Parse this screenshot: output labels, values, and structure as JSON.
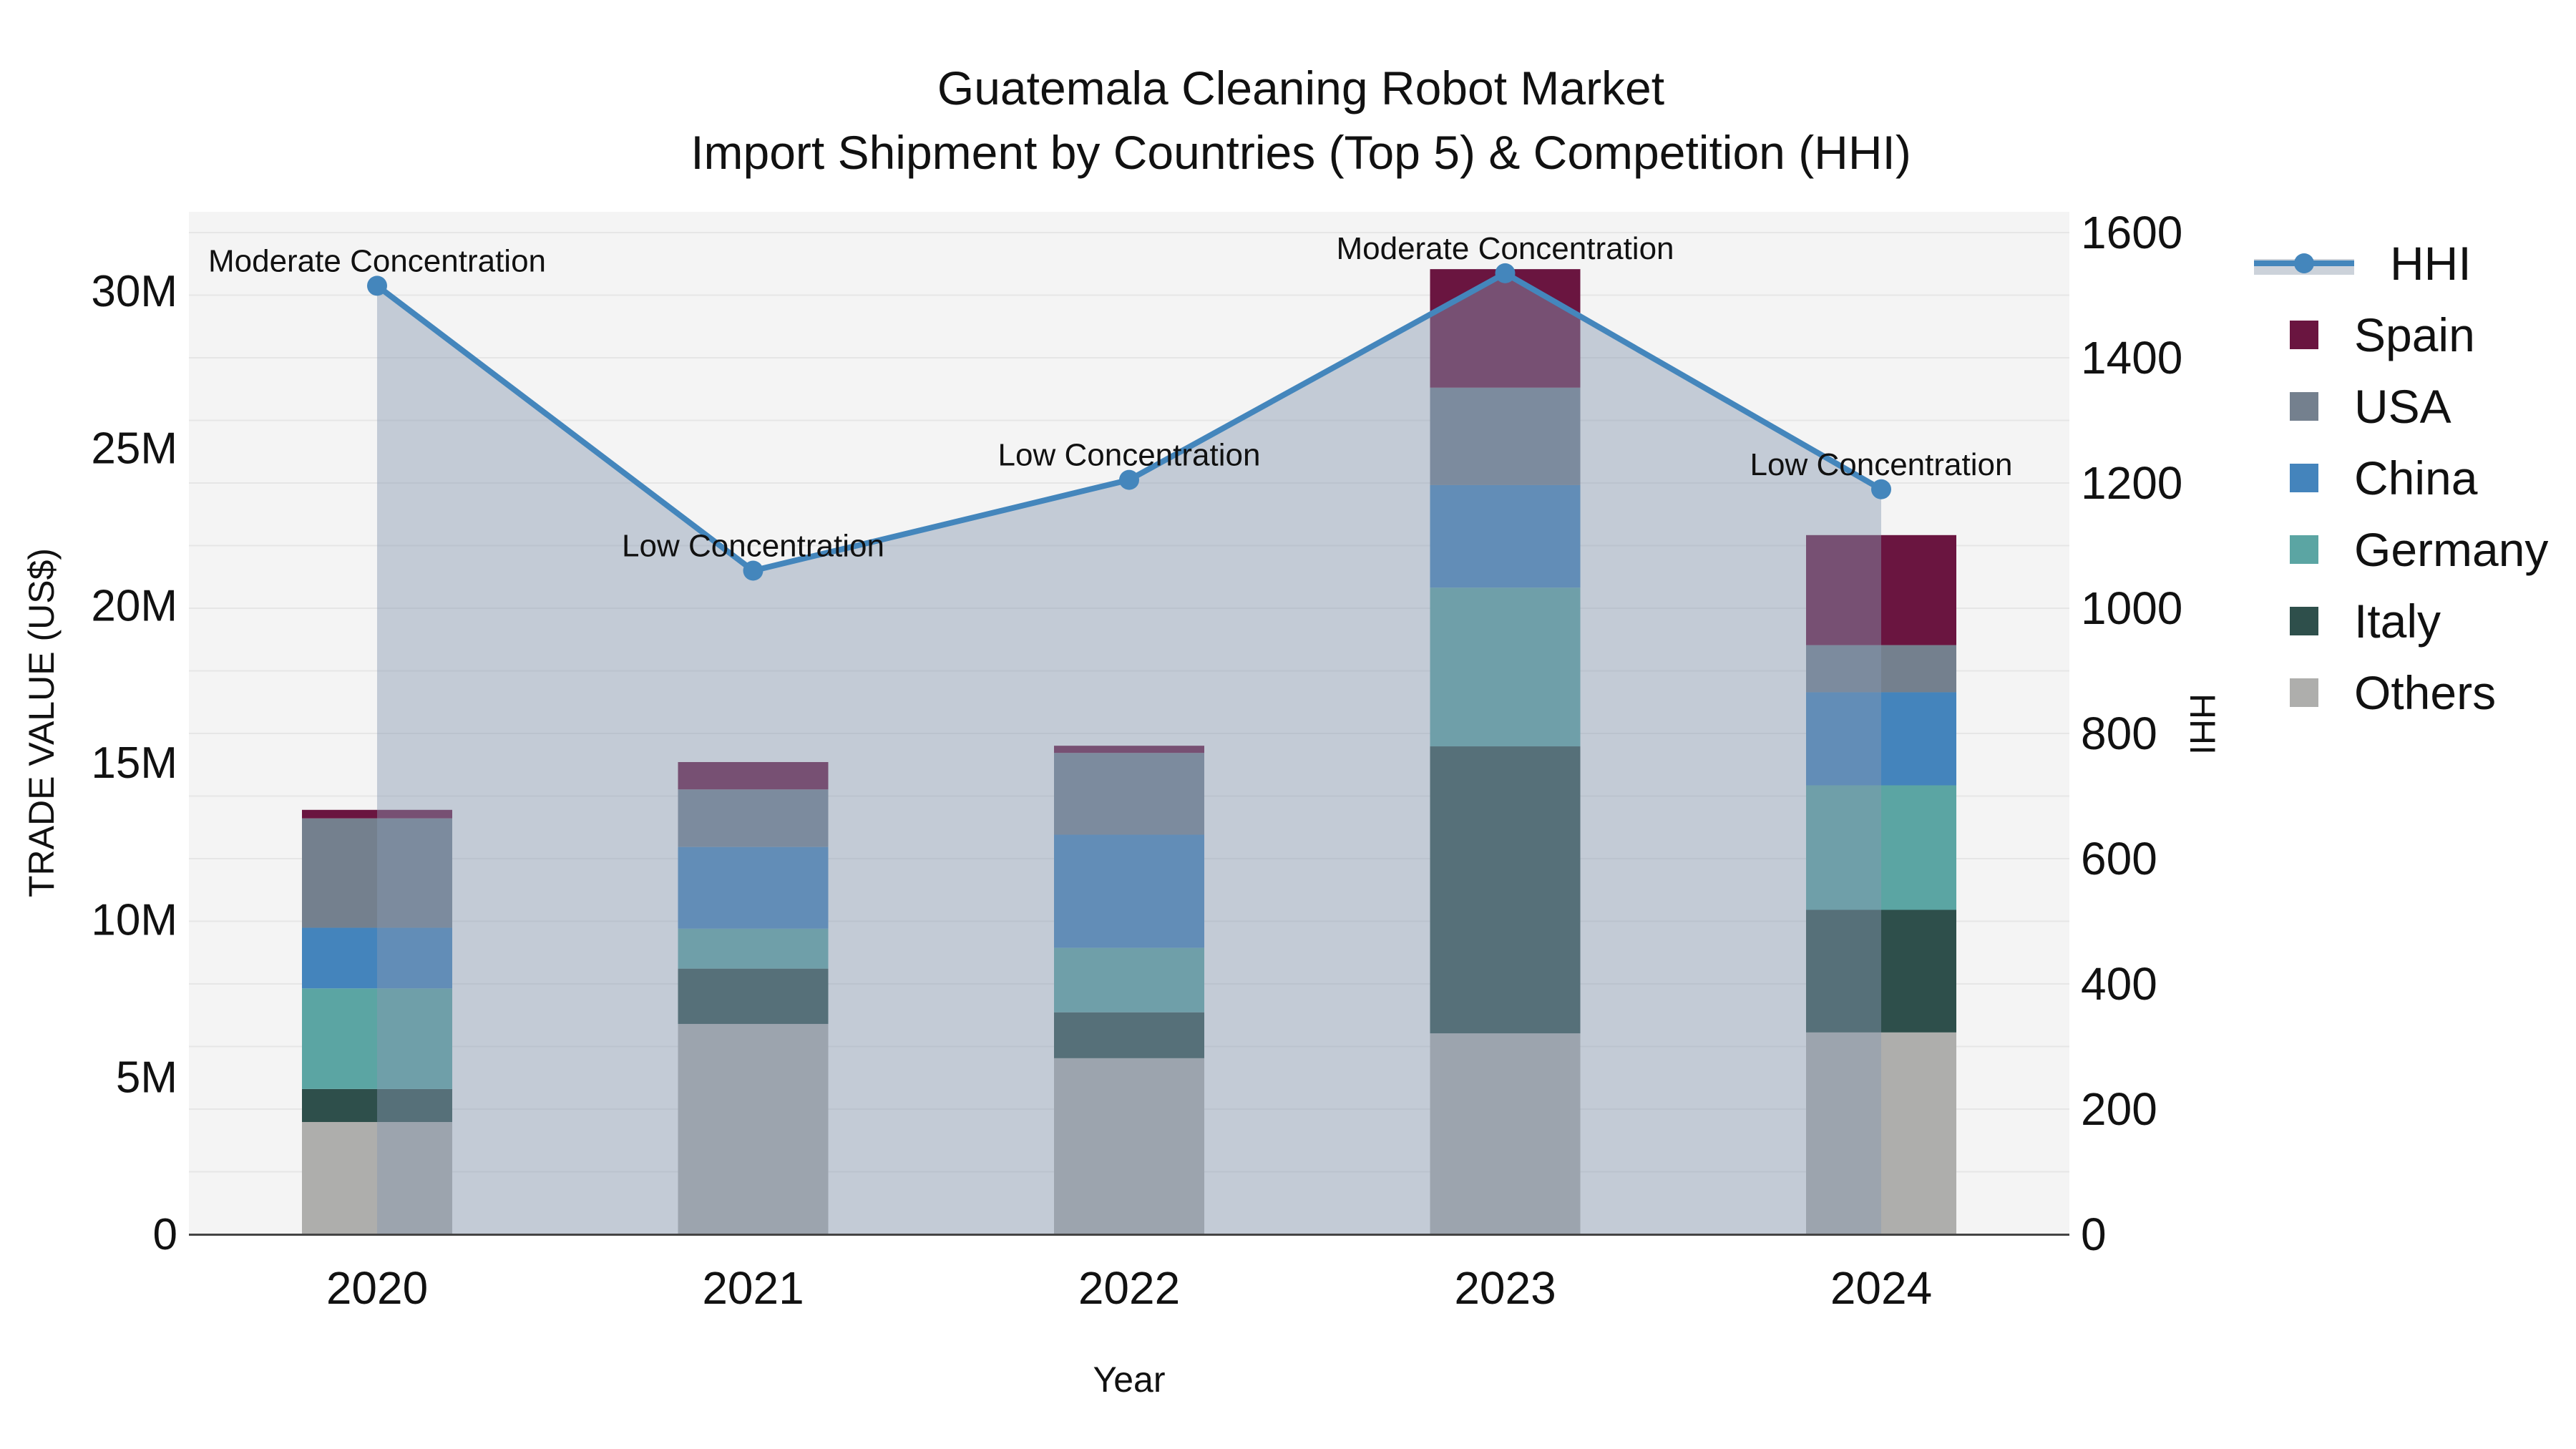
{
  "title": {
    "line1": "Guatemala Cleaning Robot Market",
    "line2": "Import Shipment by Countries (Top 5) & Competition (HHI)"
  },
  "axes": {
    "left": {
      "title": "TRADE VALUE (US$)",
      "tick_labels": [
        "0",
        "5M",
        "10M",
        "15M",
        "20M",
        "25M",
        "30M"
      ],
      "tick_values": [
        0,
        5,
        10,
        15,
        20,
        25,
        30
      ],
      "units": "millions USD"
    },
    "right": {
      "title": "HHI",
      "tick_labels": [
        "0",
        "200",
        "400",
        "600",
        "800",
        "1000",
        "1200",
        "1400",
        "1600"
      ],
      "tick_values": [
        0,
        200,
        400,
        600,
        800,
        1000,
        1200,
        1400,
        1600
      ]
    },
    "x": {
      "title": "Year",
      "categories": [
        "2020",
        "2021",
        "2022",
        "2023",
        "2024"
      ]
    }
  },
  "legend": {
    "items": [
      {
        "label": "HHI",
        "type": "line",
        "color": "#4486bc"
      },
      {
        "label": "Spain",
        "type": "bar",
        "color": "#6a1540"
      },
      {
        "label": "USA",
        "type": "bar",
        "color": "#74808e"
      },
      {
        "label": "China",
        "type": "bar",
        "color": "#4484bc"
      },
      {
        "label": "Germany",
        "type": "bar",
        "color": "#5ba5a3"
      },
      {
        "label": "Italy",
        "type": "bar",
        "color": "#2e4f4b"
      },
      {
        "label": "Others",
        "type": "bar",
        "color": "#aeaeac"
      }
    ]
  },
  "chart_data": {
    "type": "combo_stacked_bar_line",
    "title": "Guatemala Cleaning Robot Market — Import Shipment by Countries (Top 5) & Competition (HHI)",
    "categories": [
      "2020",
      "2021",
      "2022",
      "2023",
      "2024"
    ],
    "bar_units": "millions USD",
    "series": [
      {
        "name": "Spain",
        "color": "#6a1540",
        "values": [
          0.27,
          0.87,
          0.23,
          3.77,
          3.5
        ]
      },
      {
        "name": "USA",
        "color": "#74808e",
        "values": [
          3.48,
          1.83,
          2.6,
          3.1,
          1.5
        ]
      },
      {
        "name": "China",
        "color": "#4484bc",
        "values": [
          1.93,
          2.6,
          3.6,
          3.26,
          2.96
        ]
      },
      {
        "name": "Germany",
        "color": "#5ba5a3",
        "values": [
          3.2,
          1.27,
          2.05,
          5.05,
          3.96
        ]
      },
      {
        "name": "Italy",
        "color": "#2e4f4b",
        "values": [
          1.05,
          1.76,
          1.46,
          9.13,
          3.9
        ]
      },
      {
        "name": "Others",
        "color": "#aeaeac",
        "values": [
          3.55,
          6.67,
          5.58,
          6.37,
          6.4
        ]
      }
    ],
    "stack_order_bottom_to_top": [
      "Others",
      "Italy",
      "Germany",
      "China",
      "USA",
      "Spain"
    ],
    "bar_totals": [
      13.48,
      15.0,
      15.52,
      30.68,
      22.22
    ],
    "line_series": {
      "name": "HHI",
      "values": [
        1515,
        1060,
        1205,
        1535,
        1190
      ],
      "color": "#4486bc",
      "area_fill": "rgba(136,152,178,0.45)"
    },
    "annotations": [
      {
        "category": "2020",
        "text": "Moderate Concentration"
      },
      {
        "category": "2021",
        "text": "Low Concentration"
      },
      {
        "category": "2022",
        "text": "Low Concentration"
      },
      {
        "category": "2023",
        "text": "Moderate Concentration"
      },
      {
        "category": "2024",
        "text": "Low Concentration"
      }
    ],
    "xlabel": "Year",
    "ylabel": "TRADE VALUE (US$)",
    "ylabel_right": "HHI",
    "ylim_left": [
      0,
      30
    ],
    "ylim_right": [
      0,
      1600
    ],
    "grid": true,
    "legend_position": "right",
    "plot_bg": "#f4f4f4"
  },
  "colors": {
    "hhi_line": "#4486bc",
    "area_fill": "rgba(136,152,178,0.45)",
    "plot_bg": "#f4f4f4",
    "gridline": "#e6e6e6",
    "axis_line": "#444444",
    "text": "#111111"
  }
}
